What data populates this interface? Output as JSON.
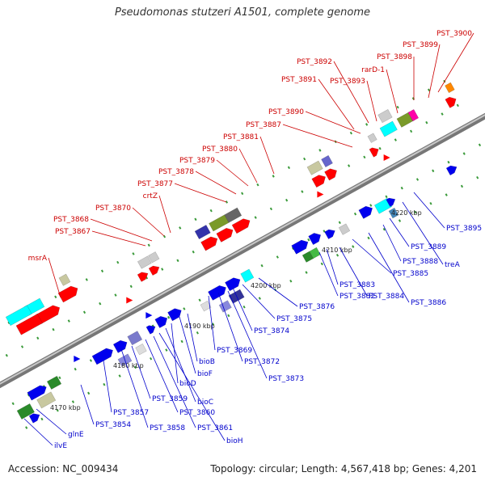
{
  "title": "Pseudomonas stutzeri A1501, complete genome",
  "footer": {
    "accession": "Accession: NC_009434",
    "summary": "Topology: circular; Length: 4,567,418 bp; Genes: 4,201"
  },
  "colors": {
    "forward_label": "#cc0000",
    "reverse_label": "#0000cc",
    "backbone": "#999999"
  },
  "kbp_ticks": [
    "4170 kbp",
    "4180 kbp",
    "4190 kbp",
    "4200 kbp",
    "4210 kbp",
    "4220 kbp"
  ],
  "forward_genes": [
    "msrA",
    "PST_3867",
    "PST_3868",
    "PST_3870",
    "crtZ",
    "PST_3877",
    "PST_3878",
    "PST_3879",
    "PST_3880",
    "PST_3881",
    "PST_3887",
    "PST_3890",
    "PST_3891",
    "PST_3892",
    "PST_3893",
    "rarD-1",
    "PST_3898",
    "PST_3899",
    "PST_3900"
  ],
  "reverse_genes": [
    "ilvE",
    "glnE",
    "PST_3854",
    "PST_3857",
    "PST_3858",
    "PST_3859",
    "PST_3860",
    "PST_3861",
    "bioH",
    "bioC",
    "bioD",
    "bioF",
    "bioB",
    "PST_3869",
    "PST_3872",
    "PST_3873",
    "PST_3874",
    "PST_3875",
    "PST_3876",
    "PST_3882",
    "PST_3883",
    "PST_3884",
    "PST_3885",
    "PST_3886",
    "PST_3888",
    "PST_3889",
    "treA",
    "PST_3895"
  ]
}
